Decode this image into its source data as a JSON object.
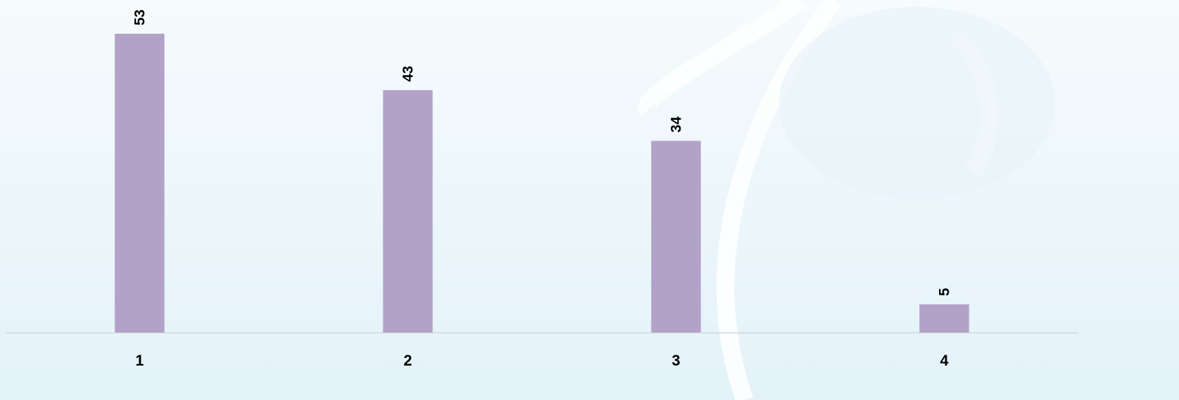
{
  "chart_data": {
    "type": "bar",
    "categories": [
      "1",
      "2",
      "3",
      "4"
    ],
    "values": [
      53,
      43,
      34,
      5
    ],
    "color": "#b3a2c7"
  }
}
